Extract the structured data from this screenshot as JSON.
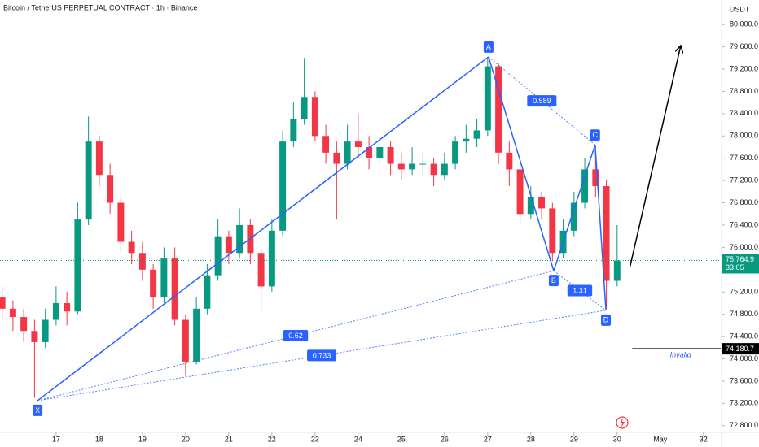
{
  "chart_data": {
    "type": "candlestick",
    "title": "Bitcoin / TetherUS PERPETUAL CONTRACT · 1h · Binance",
    "y_axis_unit": "USDT",
    "x": [
      15.75,
      16,
      16.25,
      16.5,
      16.75,
      17,
      17.25,
      17.5,
      17.75,
      18,
      18.25,
      18.5,
      18.75,
      19,
      19.25,
      19.5,
      19.75,
      20,
      20.25,
      20.5,
      20.75,
      21,
      21.25,
      21.5,
      21.75,
      22,
      22.25,
      22.5,
      22.75,
      23,
      23.25,
      23.5,
      23.75,
      24,
      24.25,
      24.5,
      24.75,
      25,
      25.25,
      25.5,
      25.75,
      26,
      26.25,
      26.5,
      26.75,
      27,
      27.25,
      27.5,
      27.75,
      28,
      28.25,
      28.5,
      28.75,
      29,
      29.25,
      29.5,
      29.75,
      30
    ],
    "open": [
      75100,
      74900,
      74750,
      74500,
      74300,
      74700,
      75000,
      74850,
      76500,
      77900,
      77300,
      76800,
      76100,
      75900,
      75600,
      75100,
      75800,
      74700,
      73950,
      74900,
      75500,
      76200,
      75900,
      76400,
      75900,
      75300,
      76300,
      77900,
      78300,
      78700,
      78000,
      77700,
      77500,
      77900,
      77800,
      77600,
      77800,
      77500,
      77400,
      77500,
      77500,
      77300,
      77500,
      77900,
      77950,
      78100,
      79250,
      77700,
      77400,
      76600,
      76900,
      76700,
      75900,
      76300,
      76800,
      77400,
      77100,
      75400
    ],
    "high": [
      75300,
      75050,
      74900,
      74700,
      74900,
      75300,
      75200,
      76800,
      78350,
      78000,
      77500,
      76900,
      76300,
      76100,
      75700,
      76000,
      76000,
      74800,
      75100,
      75700,
      76500,
      76300,
      76700,
      76500,
      76000,
      76500,
      78100,
      78600,
      79400,
      78800,
      78200,
      77900,
      78200,
      78400,
      78000,
      78000,
      77900,
      77700,
      77800,
      77700,
      77600,
      77700,
      78000,
      78200,
      78300,
      79420,
      79300,
      77900,
      77500,
      77100,
      77000,
      76800,
      76500,
      77000,
      77600,
      77800,
      77200,
      76400
    ],
    "low": [
      74700,
      74500,
      74300,
      73300,
      74200,
      74600,
      74600,
      74800,
      76400,
      77100,
      76600,
      75900,
      75700,
      75400,
      74900,
      75000,
      74600,
      73690,
      73900,
      74800,
      75400,
      75700,
      75800,
      75700,
      74850,
      75200,
      76200,
      77800,
      78200,
      77900,
      77500,
      76500,
      77400,
      77600,
      77400,
      77500,
      77300,
      77200,
      77300,
      77300,
      77100,
      77200,
      77400,
      77700,
      77800,
      78000,
      77500,
      77100,
      76400,
      76500,
      76500,
      75750,
      75800,
      76200,
      76700,
      76900,
      74900,
      75300
    ],
    "close": [
      74900,
      74750,
      74500,
      74300,
      74700,
      75000,
      74850,
      76500,
      77900,
      77300,
      76800,
      76100,
      75900,
      75600,
      75100,
      75800,
      74700,
      73950,
      74900,
      75500,
      76200,
      75900,
      76400,
      75900,
      75300,
      76300,
      77900,
      78300,
      78700,
      78000,
      77700,
      77500,
      77900,
      77800,
      77600,
      77800,
      77500,
      77400,
      77500,
      77500,
      77300,
      77500,
      77900,
      77950,
      78100,
      79250,
      77700,
      77400,
      76600,
      76900,
      76700,
      75900,
      76300,
      76800,
      77400,
      77100,
      75400,
      75764.9
    ],
    "up_color": "#089981",
    "down_color": "#f23645",
    "xlim": [
      15.7,
      32.4
    ],
    "ylim": [
      72680,
      80440
    ],
    "xticks": [
      17,
      18,
      19,
      20,
      21,
      22,
      23,
      24,
      25,
      26,
      27,
      28,
      29,
      30,
      {
        "value": 31,
        "label": "May"
      },
      32
    ],
    "yticks": [
      {
        "value": 72800,
        "label": "72,800.0"
      },
      {
        "value": 73200,
        "label": "73,200.0"
      },
      {
        "value": 73600,
        "label": "73,600.0"
      },
      {
        "value": 74000,
        "label": "74,000.0"
      },
      {
        "value": 74400,
        "label": "74,400.0"
      },
      {
        "value": 74800,
        "label": "74,800.0"
      },
      {
        "value": 75200,
        "label": "75,200.0"
      },
      {
        "value": 75600,
        "label": "75,600.0"
      },
      {
        "value": 76000,
        "label": "76,000.0"
      },
      {
        "value": 76400,
        "label": "76,400.0"
      },
      {
        "value": 76800,
        "label": "76,800.0"
      },
      {
        "value": 77200,
        "label": "77,200.0"
      },
      {
        "value": 77600,
        "label": "77,600.0"
      },
      {
        "value": 78000,
        "label": "78,000.0"
      },
      {
        "value": 78400,
        "label": "78,400.0"
      },
      {
        "value": 78800,
        "label": "78,800.0"
      },
      {
        "value": 79200,
        "label": "79,200.0"
      },
      {
        "value": 79600,
        "label": "79,600.0"
      },
      {
        "value": 80000,
        "label": "80,000.0"
      }
    ],
    "last_price": {
      "value": 75764.9,
      "label": "75,764.9",
      "countdown": "33:05",
      "color": "#089981"
    },
    "pattern": {
      "color": "#2962ff",
      "points": [
        {
          "label": "X",
          "x": 16.57,
          "y": 73250
        },
        {
          "label": "A",
          "x": 27.02,
          "y": 79420
        },
        {
          "label": "B",
          "x": 28.53,
          "y": 75580
        },
        {
          "label": "C",
          "x": 29.49,
          "y": 77840
        },
        {
          "label": "D",
          "x": 29.74,
          "y": 74870
        }
      ],
      "ratios": [
        {
          "label": "0.589",
          "from": 1,
          "to": 3
        },
        {
          "label": "1.31",
          "from": 2,
          "to": 4
        },
        {
          "label": "0.62",
          "from": 0,
          "to": 2
        },
        {
          "label": "0.733",
          "from": 0,
          "to": 4
        }
      ]
    },
    "arrow": {
      "from": [
        30.3,
        75660
      ],
      "to": [
        31.47,
        79610
      ]
    },
    "invalid_level": {
      "value": 74180.7,
      "label": "74,180.7",
      "text": "Invalid",
      "from_x": 30.35
    }
  }
}
